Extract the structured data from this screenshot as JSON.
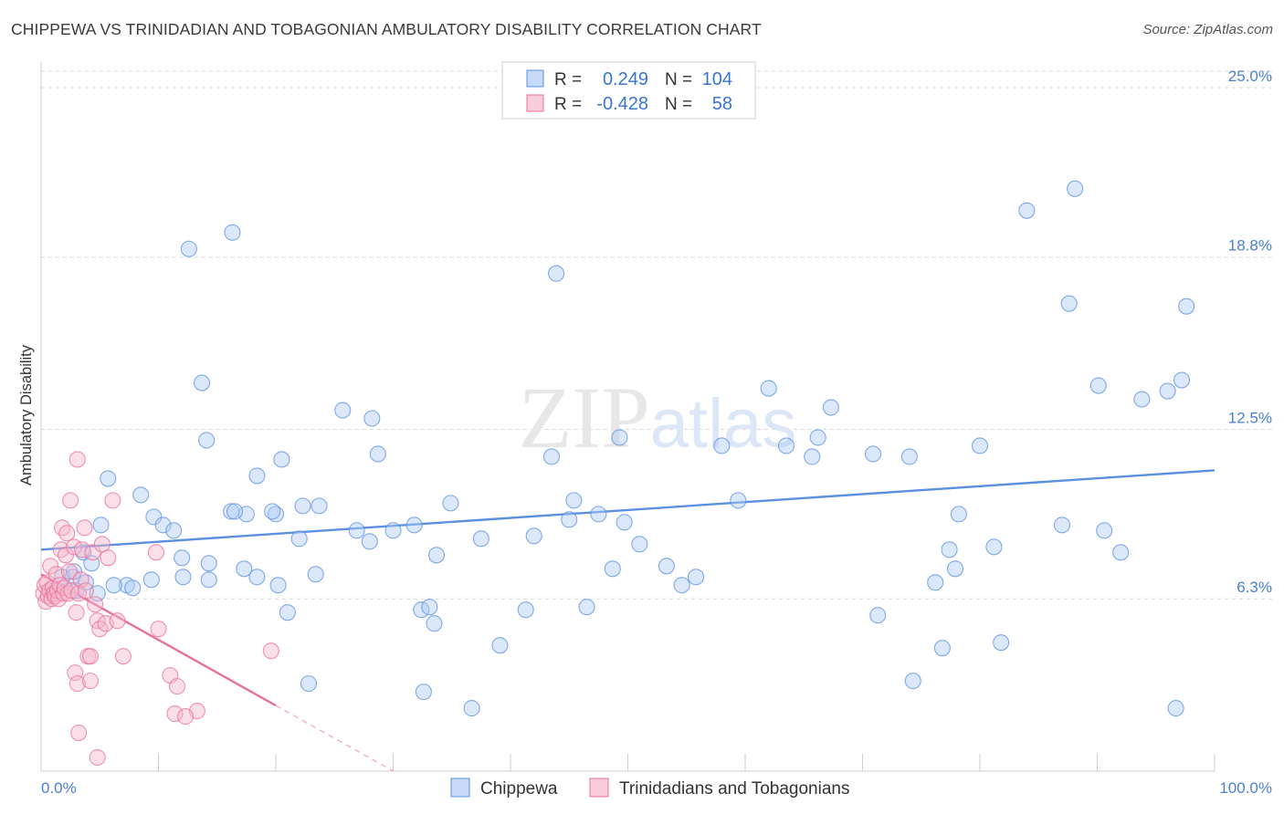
{
  "chart_data": {
    "type": "scatter",
    "title": "CHIPPEWA VS TRINIDADIAN AND TOBAGONIAN AMBULATORY DISABILITY CORRELATION CHART",
    "source": "Source: ZipAtlas.com",
    "xlabel": "",
    "ylabel": "Ambulatory Disability",
    "xlim": [
      0,
      100
    ],
    "ylim": [
      0,
      25.6
    ],
    "x_tick_labels": [
      "0.0%",
      "100.0%"
    ],
    "y_ticks": [
      6.3,
      12.5,
      18.8,
      25.0
    ],
    "y_tick_labels": [
      "6.3%",
      "12.5%",
      "18.8%",
      "25.0%"
    ],
    "watermark": "ZIPatlas",
    "legend": {
      "entries": [
        {
          "r_label": "R =",
          "r": "0.249",
          "n_label": "N =",
          "n": "104"
        },
        {
          "r_label": "R =",
          "r": "-0.428",
          "n_label": "N =",
          "n": "58"
        }
      ]
    },
    "series": [
      {
        "name": "Chippewa",
        "color": "#5b8fe0",
        "fill": "#aecbf3",
        "trend": {
          "x": [
            0,
            100
          ],
          "y": [
            8.1,
            11.0
          ],
          "style": "solid"
        },
        "points": [
          [
            3.6,
            8.0
          ],
          [
            5.7,
            10.7
          ],
          [
            8.5,
            10.1
          ],
          [
            9.6,
            9.3
          ],
          [
            10.4,
            9.0
          ],
          [
            11.3,
            8.8
          ],
          [
            12.0,
            7.8
          ],
          [
            13.7,
            14.2
          ],
          [
            14.1,
            12.1
          ],
          [
            16.2,
            9.5
          ],
          [
            18.4,
            10.8
          ],
          [
            20.0,
            9.4
          ],
          [
            22.0,
            8.5
          ],
          [
            22.3,
            9.7
          ],
          [
            18.4,
            7.1
          ],
          [
            12.6,
            19.1
          ],
          [
            16.3,
            19.7
          ],
          [
            17.5,
            9.4
          ],
          [
            17.3,
            7.4
          ],
          [
            14.3,
            7.0
          ],
          [
            12.1,
            7.1
          ],
          [
            9.4,
            7.0
          ],
          [
            7.3,
            6.8
          ],
          [
            6.2,
            6.8
          ],
          [
            4.8,
            6.5
          ],
          [
            4.3,
            7.6
          ],
          [
            2.7,
            7.1
          ],
          [
            3.8,
            6.9
          ],
          [
            3.0,
            6.6
          ],
          [
            7.8,
            6.7
          ],
          [
            16.5,
            9.5
          ],
          [
            19.7,
            9.5
          ],
          [
            20.2,
            6.8
          ],
          [
            21.0,
            5.8
          ],
          [
            23.4,
            7.2
          ],
          [
            23.7,
            9.7
          ],
          [
            25.7,
            13.2
          ],
          [
            26.9,
            8.8
          ],
          [
            28.0,
            8.4
          ],
          [
            28.2,
            12.9
          ],
          [
            28.7,
            11.6
          ],
          [
            22.8,
            3.2
          ],
          [
            32.4,
            5.9
          ],
          [
            33.1,
            6.0
          ],
          [
            33.5,
            5.4
          ],
          [
            32.6,
            2.9
          ],
          [
            33.7,
            7.9
          ],
          [
            34.9,
            9.8
          ],
          [
            36.7,
            2.3
          ],
          [
            37.5,
            8.5
          ],
          [
            39.1,
            4.6
          ],
          [
            41.3,
            5.9
          ],
          [
            42.0,
            8.6
          ],
          [
            43.5,
            11.5
          ],
          [
            43.9,
            18.2
          ],
          [
            45.0,
            9.2
          ],
          [
            45.4,
            9.9
          ],
          [
            46.5,
            6.0
          ],
          [
            47.5,
            9.4
          ],
          [
            48.7,
            7.4
          ],
          [
            49.3,
            12.2
          ],
          [
            49.7,
            9.1
          ],
          [
            51.0,
            8.3
          ],
          [
            53.3,
            7.5
          ],
          [
            54.6,
            6.8
          ],
          [
            55.8,
            7.1
          ],
          [
            58.0,
            11.9
          ],
          [
            59.4,
            9.9
          ],
          [
            62.0,
            14.0
          ],
          [
            63.5,
            11.9
          ],
          [
            65.7,
            11.5
          ],
          [
            66.2,
            12.2
          ],
          [
            67.3,
            13.3
          ],
          [
            70.9,
            11.6
          ],
          [
            71.3,
            5.7
          ],
          [
            74.0,
            11.5
          ],
          [
            74.3,
            3.3
          ],
          [
            76.2,
            6.9
          ],
          [
            76.8,
            4.5
          ],
          [
            77.4,
            8.1
          ],
          [
            77.9,
            7.4
          ],
          [
            78.2,
            9.4
          ],
          [
            80.0,
            11.9
          ],
          [
            81.2,
            8.2
          ],
          [
            81.8,
            4.7
          ],
          [
            84.0,
            20.5
          ],
          [
            87.0,
            9.0
          ],
          [
            87.6,
            17.1
          ],
          [
            88.1,
            21.3
          ],
          [
            90.1,
            14.1
          ],
          [
            90.6,
            8.8
          ],
          [
            92.0,
            8.0
          ],
          [
            93.8,
            13.6
          ],
          [
            96.0,
            13.9
          ],
          [
            96.7,
            2.3
          ],
          [
            97.2,
            14.3
          ],
          [
            97.6,
            17.0
          ],
          [
            1.8,
            7.1
          ],
          [
            2.8,
            7.3
          ],
          [
            5.1,
            9.0
          ],
          [
            14.3,
            7.6
          ],
          [
            20.5,
            11.4
          ],
          [
            31.8,
            9.0
          ],
          [
            30.0,
            8.8
          ]
        ]
      },
      {
        "name": "Trinidadians and Tobagonians",
        "color": "#e8709a",
        "fill": "#f5b7cb",
        "trend": {
          "x": [
            0,
            20
          ],
          "y": [
            7.2,
            2.4
          ],
          "style": "solid",
          "dash_x": [
            20,
            30
          ],
          "dash_y": [
            2.4,
            0.0
          ]
        },
        "points": [
          [
            0.2,
            6.5
          ],
          [
            0.3,
            6.8
          ],
          [
            0.4,
            6.2
          ],
          [
            0.5,
            6.9
          ],
          [
            0.6,
            6.4
          ],
          [
            0.7,
            6.6
          ],
          [
            0.8,
            7.5
          ],
          [
            0.9,
            6.3
          ],
          [
            1.0,
            6.7
          ],
          [
            1.1,
            6.5
          ],
          [
            1.2,
            6.4
          ],
          [
            1.3,
            7.2
          ],
          [
            1.4,
            6.6
          ],
          [
            1.5,
            6.3
          ],
          [
            1.6,
            6.8
          ],
          [
            1.7,
            8.1
          ],
          [
            1.8,
            8.9
          ],
          [
            1.9,
            6.5
          ],
          [
            2.0,
            6.7
          ],
          [
            2.1,
            7.9
          ],
          [
            2.2,
            8.7
          ],
          [
            2.3,
            6.5
          ],
          [
            2.4,
            7.3
          ],
          [
            2.5,
            9.9
          ],
          [
            2.6,
            6.6
          ],
          [
            2.8,
            8.2
          ],
          [
            3.0,
            5.8
          ],
          [
            3.1,
            11.4
          ],
          [
            3.2,
            6.5
          ],
          [
            3.4,
            7.0
          ],
          [
            3.5,
            8.1
          ],
          [
            3.7,
            8.9
          ],
          [
            3.8,
            6.6
          ],
          [
            4.0,
            4.2
          ],
          [
            4.2,
            4.2
          ],
          [
            4.4,
            8.0
          ],
          [
            4.6,
            6.1
          ],
          [
            4.8,
            5.5
          ],
          [
            5.0,
            5.2
          ],
          [
            5.2,
            8.3
          ],
          [
            5.5,
            5.4
          ],
          [
            5.7,
            7.8
          ],
          [
            6.1,
            9.9
          ],
          [
            6.5,
            5.5
          ],
          [
            7.0,
            4.2
          ],
          [
            2.9,
            3.6
          ],
          [
            3.1,
            3.2
          ],
          [
            4.2,
            3.3
          ],
          [
            3.2,
            1.4
          ],
          [
            4.8,
            0.5
          ],
          [
            10.0,
            5.2
          ],
          [
            11.0,
            3.5
          ],
          [
            11.6,
            3.1
          ],
          [
            11.4,
            2.1
          ],
          [
            13.3,
            2.2
          ],
          [
            19.6,
            4.4
          ],
          [
            12.3,
            2.0
          ],
          [
            9.8,
            8.0
          ]
        ]
      }
    ]
  }
}
